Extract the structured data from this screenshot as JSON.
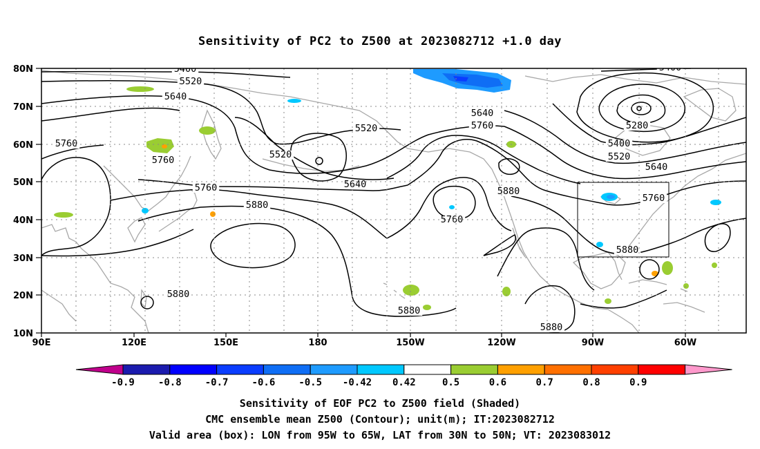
{
  "title": "Sensitivity of PC2 to Z500 at 2023082712 +1.0 day",
  "map": {
    "lat_labels": [
      "80N",
      "70N",
      "60N",
      "50N",
      "40N",
      "30N",
      "20N",
      "10N"
    ],
    "lon_labels": [
      "90E",
      "120E",
      "150E",
      "180",
      "150W",
      "120W",
      "90W",
      "60W"
    ],
    "contour_labels": [
      {
        "text": "5400",
        "name": "contour-label-5400-west"
      },
      {
        "text": "5520",
        "name": "contour-label-5520-west"
      },
      {
        "text": "5640",
        "name": "contour-label-5640-west"
      },
      {
        "text": "5760",
        "name": "contour-label-5760-west"
      },
      {
        "text": "5760",
        "name": "contour-label-5760-japan-sea"
      },
      {
        "text": "5760",
        "name": "contour-label-5760-east-asia"
      },
      {
        "text": "5880",
        "name": "contour-label-5880-pacific"
      },
      {
        "text": "5520",
        "name": "contour-label-5520-bering"
      },
      {
        "text": "5520",
        "name": "contour-label-5520-low"
      },
      {
        "text": "5640",
        "name": "contour-label-5640-central"
      },
      {
        "text": "5640",
        "name": "contour-label-5640-gulf-alaska"
      },
      {
        "text": "5760",
        "name": "contour-label-5760-gulf-alaska"
      },
      {
        "text": "5760",
        "name": "contour-label-5760-ne-pacific"
      },
      {
        "text": "5880",
        "name": "contour-label-5880-west-us"
      },
      {
        "text": "5400",
        "name": "contour-label-5400-east"
      },
      {
        "text": "5280",
        "name": "contour-label-5280-east"
      },
      {
        "text": "5400",
        "name": "contour-label-5400-canada"
      },
      {
        "text": "5520",
        "name": "contour-label-5520-canada"
      },
      {
        "text": "5640",
        "name": "contour-label-5640-canada"
      },
      {
        "text": "5760",
        "name": "contour-label-5760-east-us"
      },
      {
        "text": "5880",
        "name": "contour-label-5880-southeast-us"
      },
      {
        "text": "5880",
        "name": "contour-label-5880-south-china-sea"
      },
      {
        "text": "5880",
        "name": "contour-label-5880-tropical-pacific"
      },
      {
        "text": "5880",
        "name": "contour-label-5880-mexico"
      }
    ],
    "valid_box": {
      "lon_west": "95W",
      "lon_east": "65W",
      "lat_south": "30N",
      "lat_north": "50N"
    }
  },
  "colorbar": {
    "labels": [
      "-0.9",
      "-0.8",
      "-0.7",
      "-0.6",
      "-0.5",
      "-0.42",
      "0.42",
      "0.5",
      "0.6",
      "0.7",
      "0.8",
      "0.9"
    ],
    "colors": [
      "#1b1bae",
      "#0000ff",
      "#0a3dff",
      "#0f6ef5",
      "#1e9bff",
      "#00c8ff",
      "#ffffff",
      "#9acd32",
      "#ffa000",
      "#ff7000",
      "#ff4000",
      "#ff0000"
    ],
    "low_end_color": "#c0008c",
    "high_end_color": "#ff99cc"
  },
  "captions": [
    "Sensitivity of EOF PC2 to Z500 field (Shaded)",
    "CMC ensemble mean Z500 (Contour); unit(m); IT:2023082712",
    "Valid area (box): LON from 95W to 65W, LAT from 30N to 50N; VT: 2023083012"
  ]
}
